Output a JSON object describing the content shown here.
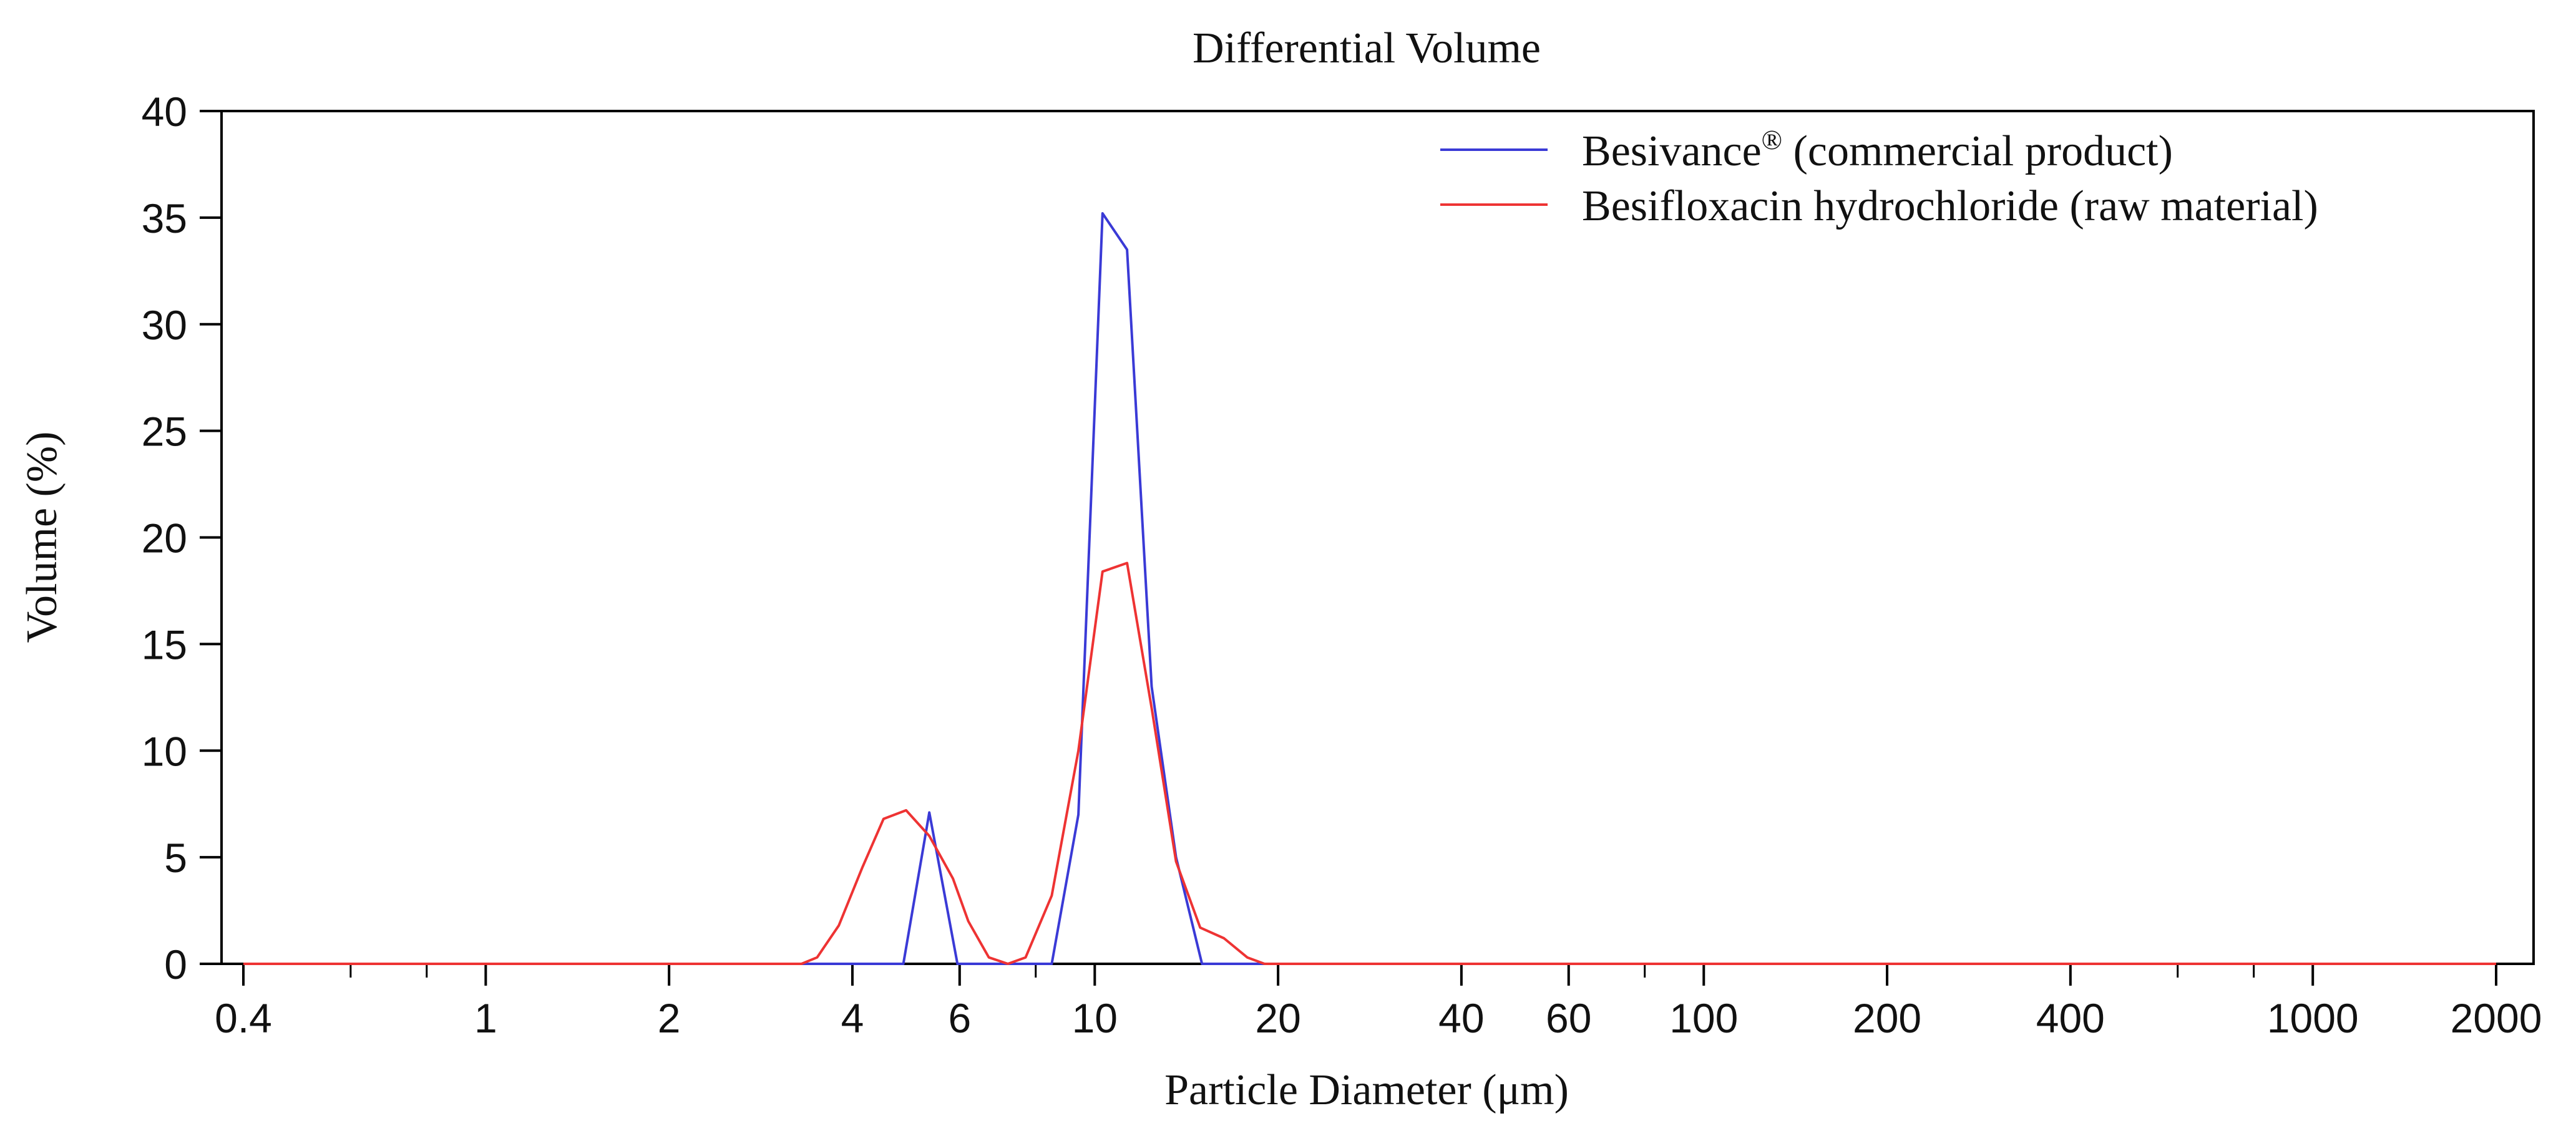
{
  "chart_data": {
    "type": "line",
    "title": "Differential Volume",
    "xlabel": "Particle Diameter (μm)",
    "ylabel": "Volume (%)",
    "xscale": "log",
    "xlim": [
      0.4,
      2000
    ],
    "ylim": [
      0,
      40
    ],
    "x_ticks": [
      {
        "value": 0.4,
        "label": "0.4"
      },
      {
        "value": 1,
        "label": "1"
      },
      {
        "value": 2,
        "label": "2"
      },
      {
        "value": 4,
        "label": "4"
      },
      {
        "value": 6,
        "label": "6"
      },
      {
        "value": 10,
        "label": "10"
      },
      {
        "value": 20,
        "label": "20"
      },
      {
        "value": 40,
        "label": "40"
      },
      {
        "value": 60,
        "label": "60"
      },
      {
        "value": 100,
        "label": "100"
      },
      {
        "value": 200,
        "label": "200"
      },
      {
        "value": 400,
        "label": "400"
      },
      {
        "value": 1000,
        "label": "1000"
      },
      {
        "value": 2000,
        "label": "2000"
      }
    ],
    "x_minor_ticks": [
      0.6,
      0.8,
      8,
      80,
      600,
      800
    ],
    "y_ticks": [
      {
        "value": 0,
        "label": "0"
      },
      {
        "value": 5,
        "label": "5"
      },
      {
        "value": 10,
        "label": "10"
      },
      {
        "value": 15,
        "label": "15"
      },
      {
        "value": 20,
        "label": "20"
      },
      {
        "value": 25,
        "label": "25"
      },
      {
        "value": 30,
        "label": "30"
      },
      {
        "value": 35,
        "label": "35"
      },
      {
        "value": 40,
        "label": "40"
      }
    ],
    "legend": {
      "position": "top-right",
      "entries": [
        {
          "name_base": "Besivance",
          "name_sup": "®",
          "name_rest": " (commercial product)"
        },
        {
          "name_base": "Besifloxacin hydrochloride (raw material)",
          "name_sup": "",
          "name_rest": ""
        }
      ]
    },
    "series": [
      {
        "name": "Besivance® (commercial product)",
        "color": "#3a3ad6",
        "points": [
          [
            0.4,
            0
          ],
          [
            4.85,
            0
          ],
          [
            5.35,
            7.1
          ],
          [
            5.95,
            0
          ],
          [
            8.5,
            0
          ],
          [
            9.4,
            7
          ],
          [
            10.3,
            35.2
          ],
          [
            11.3,
            33.5
          ],
          [
            12.4,
            13
          ],
          [
            13.6,
            5
          ],
          [
            15.0,
            0
          ],
          [
            2000,
            0
          ]
        ]
      },
      {
        "name": "Besifloxacin hydrochloride (raw material)",
        "color": "#ee3333",
        "points": [
          [
            0.4,
            0
          ],
          [
            3.3,
            0
          ],
          [
            3.5,
            0.3
          ],
          [
            3.8,
            1.8
          ],
          [
            4.15,
            4.5
          ],
          [
            4.5,
            6.8
          ],
          [
            4.9,
            7.2
          ],
          [
            5.35,
            6.0
          ],
          [
            5.85,
            4.0
          ],
          [
            6.2,
            2.0
          ],
          [
            6.7,
            0.3
          ],
          [
            7.2,
            0
          ],
          [
            7.7,
            0.3
          ],
          [
            8.5,
            3.2
          ],
          [
            9.4,
            10
          ],
          [
            10.3,
            18.4
          ],
          [
            11.3,
            18.8
          ],
          [
            12.4,
            12
          ],
          [
            13.6,
            4.8
          ],
          [
            14.9,
            1.7
          ],
          [
            16.3,
            1.2
          ],
          [
            17.8,
            0.3
          ],
          [
            19.0,
            0
          ],
          [
            2000,
            0
          ]
        ]
      }
    ]
  }
}
